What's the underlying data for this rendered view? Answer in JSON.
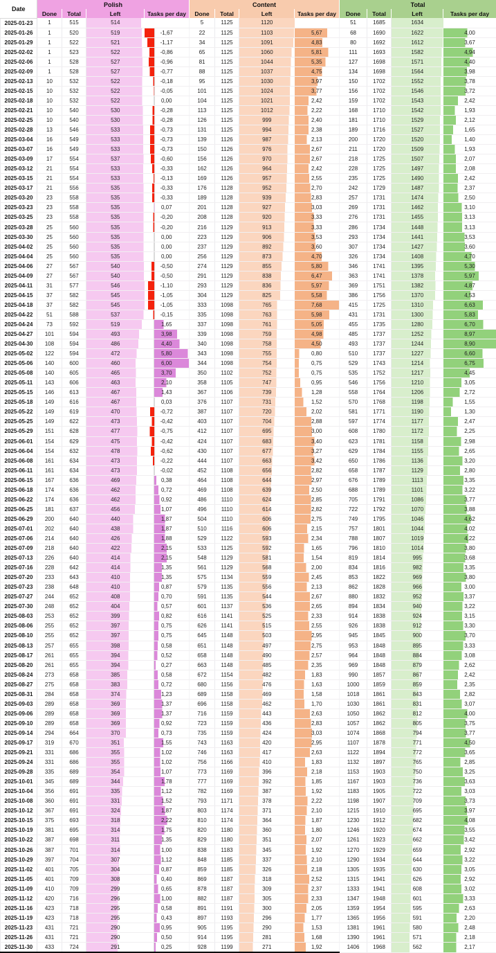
{
  "header": {
    "date": "Date",
    "sub": [
      "Done",
      "Total",
      "Left",
      "Tasks per day"
    ],
    "groups": [
      {
        "name": "Polish",
        "header_bg": "#EFA2E2",
        "left_bar": "#F6C9F0",
        "tpd_bar_pos": "#DB88DA",
        "tpd_bar_neg": "#F4220C"
      },
      {
        "name": "Content",
        "header_bg": "#F8CBAD",
        "left_bar": "#FBD6BF",
        "tpd_bar_pos": "#F5B387",
        "tpd_bar_neg": "#F4220C"
      },
      {
        "name": "Total",
        "header_bg": "#A9D08E",
        "left_bar": "#D8EECC",
        "tpd_bar_pos": "#92D17B",
        "tpd_bar_neg": "#F4220C"
      }
    ]
  },
  "scales": {
    "polish_left_max": 546,
    "content_left_max": 1120,
    "total_left_max": 1634,
    "polish_tpd_min": -1.67,
    "polish_tpd_max": 6.0,
    "content_tpd_max": 7.68,
    "total_tpd_max": 8.97
  },
  "columns": [
    "date",
    "polish-done",
    "polish-total",
    "polish-left",
    "polish-tasks-per-day",
    "content-done",
    "content-total",
    "content-left",
    "content-tasks-per-day",
    "total-done",
    "total-total",
    "total-left",
    "total-tasks-per-day"
  ],
  "rows": [
    [
      "2025-01-23",
      "1",
      "515",
      "514",
      "",
      "5",
      "1125",
      "1120",
      "",
      "51",
      "1685",
      "1634",
      ""
    ],
    [
      "2025-01-26",
      "1",
      "520",
      "519",
      "-1,67",
      "22",
      "1125",
      "1103",
      "5,67",
      "68",
      "1690",
      "1622",
      "4,00"
    ],
    [
      "2025-01-29",
      "1",
      "522",
      "521",
      "-1,17",
      "34",
      "1125",
      "1091",
      "4,83",
      "80",
      "1692",
      "1612",
      "3,67"
    ],
    [
      "2025-02-02",
      "1",
      "523",
      "522",
      "-0,86",
      "65",
      "1125",
      "1060",
      "5,81",
      "111",
      "1693",
      "1582",
      "4,94"
    ],
    [
      "2025-02-06",
      "1",
      "528",
      "527",
      "-0,96",
      "81",
      "1125",
      "1044",
      "5,35",
      "127",
      "1698",
      "1571",
      "4,40"
    ],
    [
      "2025-02-09",
      "1",
      "528",
      "527",
      "-0,77",
      "88",
      "1125",
      "1037",
      "4,75",
      "134",
      "1698",
      "1564",
      "3,98"
    ],
    [
      "2025-02-13",
      "10",
      "532",
      "522",
      "-0,18",
      "95",
      "1125",
      "1030",
      "3,97",
      "150",
      "1702",
      "1552",
      "3,78"
    ],
    [
      "2025-02-15",
      "10",
      "532",
      "522",
      "-0,05",
      "101",
      "1125",
      "1024",
      "3,77",
      "156",
      "1702",
      "1546",
      "3,72"
    ],
    [
      "2025-02-18",
      "10",
      "532",
      "522",
      "0,00",
      "104",
      "1125",
      "1021",
      "2,42",
      "159",
      "1702",
      "1543",
      "2,42"
    ],
    [
      "2025-02-21",
      "10",
      "540",
      "530",
      "-0,28",
      "113",
      "1125",
      "1012",
      "2,22",
      "168",
      "1710",
      "1542",
      "1,93"
    ],
    [
      "2025-02-25",
      "10",
      "540",
      "530",
      "-0,28",
      "126",
      "1125",
      "999",
      "2,40",
      "181",
      "1710",
      "1529",
      "2,12"
    ],
    [
      "2025-02-28",
      "13",
      "546",
      "533",
      "-0,73",
      "131",
      "1125",
      "994",
      "2,38",
      "189",
      "1716",
      "1527",
      "1,65"
    ],
    [
      "2025-03-04",
      "16",
      "549",
      "533",
      "-0,73",
      "139",
      "1126",
      "987",
      "2,13",
      "200",
      "1720",
      "1520",
      "1,40"
    ],
    [
      "2025-03-07",
      "16",
      "549",
      "533",
      "-0,73",
      "150",
      "1126",
      "976",
      "2,67",
      "211",
      "1720",
      "1509",
      "1,93"
    ],
    [
      "2025-03-09",
      "17",
      "554",
      "537",
      "-0,60",
      "156",
      "1126",
      "970",
      "2,67",
      "218",
      "1725",
      "1507",
      "2,07"
    ],
    [
      "2025-03-12",
      "21",
      "554",
      "533",
      "-0,33",
      "162",
      "1126",
      "964",
      "2,42",
      "228",
      "1725",
      "1497",
      "2,08"
    ],
    [
      "2025-03-15",
      "21",
      "554",
      "533",
      "-0,13",
      "169",
      "1126",
      "957",
      "2,55",
      "235",
      "1725",
      "1490",
      "2,42"
    ],
    [
      "2025-03-17",
      "21",
      "556",
      "535",
      "-0,33",
      "176",
      "1128",
      "952",
      "2,70",
      "242",
      "1729",
      "1487",
      "2,37"
    ],
    [
      "2025-03-20",
      "23",
      "558",
      "535",
      "-0,33",
      "189",
      "1128",
      "939",
      "2,83",
      "257",
      "1731",
      "1474",
      "2,50"
    ],
    [
      "2025-03-23",
      "23",
      "558",
      "535",
      "0,07",
      "201",
      "1128",
      "927",
      "3,03",
      "269",
      "1731",
      "1462",
      "3,10"
    ],
    [
      "2025-03-25",
      "23",
      "558",
      "535",
      "-0,20",
      "208",
      "1128",
      "920",
      "3,33",
      "276",
      "1731",
      "1455",
      "3,13"
    ],
    [
      "2025-03-28",
      "25",
      "560",
      "535",
      "-0,20",
      "216",
      "1129",
      "913",
      "3,33",
      "286",
      "1734",
      "1448",
      "3,13"
    ],
    [
      "2025-03-30",
      "25",
      "560",
      "535",
      "0,00",
      "223",
      "1129",
      "906",
      "3,53",
      "293",
      "1734",
      "1441",
      "3,53"
    ],
    [
      "2025-04-02",
      "25",
      "560",
      "535",
      "0,00",
      "237",
      "1129",
      "892",
      "3,60",
      "307",
      "1734",
      "1427",
      "3,60"
    ],
    [
      "2025-04-04",
      "25",
      "560",
      "535",
      "0,00",
      "256",
      "1129",
      "873",
      "4,70",
      "326",
      "1734",
      "1408",
      "4,70"
    ],
    [
      "2025-04-06",
      "27",
      "567",
      "540",
      "-0,50",
      "274",
      "1129",
      "855",
      "5,80",
      "346",
      "1741",
      "1395",
      "5,30"
    ],
    [
      "2025-04-09",
      "27",
      "567",
      "540",
      "-0,50",
      "291",
      "1129",
      "838",
      "6,47",
      "363",
      "1741",
      "1378",
      "5,97"
    ],
    [
      "2025-04-11",
      "31",
      "577",
      "546",
      "-1,10",
      "293",
      "1129",
      "836",
      "5,97",
      "369",
      "1751",
      "1382",
      "4,87"
    ],
    [
      "2025-04-15",
      "37",
      "582",
      "545",
      "-1,05",
      "304",
      "1129",
      "825",
      "5,58",
      "386",
      "1756",
      "1370",
      "4,53"
    ],
    [
      "2025-04-18",
      "37",
      "582",
      "545",
      "-1,05",
      "333",
      "1098",
      "765",
      "7,68",
      "415",
      "1725",
      "1310",
      "6,63"
    ],
    [
      "2025-04-22",
      "51",
      "588",
      "537",
      "-0,15",
      "335",
      "1098",
      "763",
      "5,98",
      "431",
      "1731",
      "1300",
      "5,83"
    ],
    [
      "2025-04-24",
      "73",
      "592",
      "519",
      "1,65",
      "337",
      "1098",
      "761",
      "5,05",
      "455",
      "1735",
      "1280",
      "6,70"
    ],
    [
      "2025-04-27",
      "101",
      "594",
      "493",
      "3,98",
      "339",
      "1098",
      "759",
      "4,98",
      "485",
      "1737",
      "1252",
      "8,97"
    ],
    [
      "2025-04-30",
      "108",
      "594",
      "486",
      "4,40",
      "340",
      "1098",
      "758",
      "4,50",
      "493",
      "1737",
      "1244",
      "8,90"
    ],
    [
      "2025-05-02",
      "122",
      "594",
      "472",
      "5,80",
      "343",
      "1098",
      "755",
      "0,80",
      "510",
      "1737",
      "1227",
      "6,60"
    ],
    [
      "2025-05-06",
      "140",
      "600",
      "460",
      "6,00",
      "344",
      "1098",
      "754",
      "0,75",
      "529",
      "1743",
      "1214",
      "6,75"
    ],
    [
      "2025-05-08",
      "140",
      "605",
      "465",
      "3,70",
      "350",
      "1102",
      "752",
      "0,75",
      "535",
      "1752",
      "1217",
      "4,45"
    ],
    [
      "2025-05-11",
      "143",
      "606",
      "463",
      "2,10",
      "358",
      "1105",
      "747",
      "0,95",
      "546",
      "1756",
      "1210",
      "3,05"
    ],
    [
      "2025-05-15",
      "146",
      "613",
      "467",
      "1,43",
      "367",
      "1106",
      "739",
      "1,28",
      "558",
      "1764",
      "1206",
      "2,72"
    ],
    [
      "2025-05-18",
      "149",
      "616",
      "467",
      "0,03",
      "376",
      "1107",
      "731",
      "1,52",
      "570",
      "1768",
      "1198",
      "1,55"
    ],
    [
      "2025-05-22",
      "149",
      "619",
      "470",
      "-0,72",
      "387",
      "1107",
      "720",
      "2,02",
      "581",
      "1771",
      "1190",
      "1,30"
    ],
    [
      "2025-05-25",
      "149",
      "622",
      "473",
      "-0,42",
      "403",
      "1107",
      "704",
      "2,88",
      "597",
      "1774",
      "1177",
      "2,47"
    ],
    [
      "2025-05-29",
      "151",
      "628",
      "477",
      "-0,75",
      "412",
      "1107",
      "695",
      "3,00",
      "608",
      "1780",
      "1172",
      "2,25"
    ],
    [
      "2025-06-01",
      "154",
      "629",
      "475",
      "-0,42",
      "424",
      "1107",
      "683",
      "3,40",
      "623",
      "1781",
      "1158",
      "2,98"
    ],
    [
      "2025-06-04",
      "154",
      "632",
      "478",
      "-0,62",
      "430",
      "1107",
      "677",
      "3,27",
      "629",
      "1784",
      "1155",
      "2,65"
    ],
    [
      "2025-06-08",
      "161",
      "634",
      "473",
      "-0,22",
      "444",
      "1107",
      "663",
      "3,42",
      "650",
      "1786",
      "1136",
      "3,20"
    ],
    [
      "2025-06-11",
      "161",
      "634",
      "473",
      "-0,02",
      "452",
      "1108",
      "656",
      "2,82",
      "658",
      "1787",
      "1129",
      "2,80"
    ],
    [
      "2025-06-15",
      "167",
      "636",
      "469",
      "0,38",
      "464",
      "1108",
      "644",
      "2,97",
      "676",
      "1789",
      "1113",
      "3,35"
    ],
    [
      "2025-06-18",
      "174",
      "636",
      "462",
      "0,72",
      "469",
      "1108",
      "639",
      "2,50",
      "688",
      "1789",
      "1101",
      "3,22"
    ],
    [
      "2025-06-22",
      "174",
      "636",
      "462",
      "0,92",
      "486",
      "1110",
      "624",
      "2,85",
      "705",
      "1791",
      "1086",
      "3,77"
    ],
    [
      "2025-06-25",
      "181",
      "637",
      "456",
      "1,07",
      "496",
      "1110",
      "614",
      "2,82",
      "722",
      "1792",
      "1070",
      "3,88"
    ],
    [
      "2025-06-29",
      "200",
      "640",
      "440",
      "1,87",
      "504",
      "1110",
      "606",
      "2,75",
      "749",
      "1795",
      "1046",
      "4,62"
    ],
    [
      "2025-07-01",
      "202",
      "640",
      "438",
      "1,87",
      "510",
      "1116",
      "606",
      "2,15",
      "757",
      "1801",
      "1044",
      "4,02"
    ],
    [
      "2025-07-06",
      "214",
      "640",
      "426",
      "1,88",
      "529",
      "1122",
      "593",
      "2,34",
      "788",
      "1807",
      "1019",
      "4,22"
    ],
    [
      "2025-07-09",
      "218",
      "640",
      "422",
      "2,15",
      "533",
      "1125",
      "592",
      "1,65",
      "796",
      "1810",
      "1014",
      "3,80"
    ],
    [
      "2025-07-13",
      "226",
      "640",
      "414",
      "2,15",
      "548",
      "1129",
      "581",
      "1,54",
      "819",
      "1814",
      "995",
      "3,68"
    ],
    [
      "2025-07-16",
      "228",
      "642",
      "414",
      "1,35",
      "561",
      "1129",
      "568",
      "2,00",
      "834",
      "1816",
      "982",
      "3,35"
    ],
    [
      "2025-07-20",
      "233",
      "643",
      "410",
      "1,35",
      "575",
      "1134",
      "559",
      "2,45",
      "853",
      "1822",
      "969",
      "3,80"
    ],
    [
      "2025-07-23",
      "238",
      "648",
      "410",
      "0,87",
      "579",
      "1135",
      "556",
      "2,13",
      "862",
      "1828",
      "966",
      "3,00"
    ],
    [
      "2025-07-27",
      "244",
      "652",
      "408",
      "0,70",
      "591",
      "1135",
      "544",
      "2,67",
      "880",
      "1832",
      "952",
      "3,37"
    ],
    [
      "2025-07-30",
      "248",
      "652",
      "404",
      "0,57",
      "601",
      "1137",
      "536",
      "2,65",
      "894",
      "1834",
      "940",
      "3,22"
    ],
    [
      "2025-08-03",
      "253",
      "652",
      "399",
      "0,82",
      "616",
      "1141",
      "525",
      "2,33",
      "914",
      "1838",
      "924",
      "3,15"
    ],
    [
      "2025-08-06",
      "255",
      "652",
      "397",
      "0,75",
      "626",
      "1141",
      "515",
      "2,55",
      "926",
      "1838",
      "912",
      "3,30"
    ],
    [
      "2025-08-10",
      "255",
      "652",
      "397",
      "0,75",
      "645",
      "1148",
      "503",
      "2,95",
      "945",
      "1845",
      "900",
      "3,70"
    ],
    [
      "2025-08-13",
      "257",
      "655",
      "398",
      "0,58",
      "651",
      "1148",
      "497",
      "2,75",
      "953",
      "1848",
      "895",
      "3,33"
    ],
    [
      "2025-08-17",
      "261",
      "655",
      "394",
      "0,52",
      "658",
      "1148",
      "490",
      "2,57",
      "964",
      "1848",
      "884",
      "3,08"
    ],
    [
      "2025-08-20",
      "261",
      "655",
      "394",
      "0,27",
      "663",
      "1148",
      "485",
      "2,35",
      "969",
      "1848",
      "879",
      "2,62"
    ],
    [
      "2025-08-24",
      "273",
      "658",
      "385",
      "0,58",
      "672",
      "1154",
      "482",
      "1,83",
      "990",
      "1857",
      "867",
      "2,42"
    ],
    [
      "2025-08-27",
      "275",
      "658",
      "383",
      "0,72",
      "680",
      "1156",
      "476",
      "1,63",
      "1000",
      "1859",
      "859",
      "2,35"
    ],
    [
      "2025-08-31",
      "284",
      "658",
      "374",
      "1,23",
      "689",
      "1158",
      "469",
      "1,58",
      "1018",
      "1861",
      "843",
      "2,82"
    ],
    [
      "2025-09-03",
      "289",
      "658",
      "369",
      "1,37",
      "696",
      "1158",
      "462",
      "1,70",
      "1030",
      "1861",
      "831",
      "3,07"
    ],
    [
      "2025-09-06",
      "289",
      "658",
      "369",
      "1,37",
      "716",
      "1159",
      "443",
      "2,63",
      "1050",
      "1862",
      "812",
      "4,00"
    ],
    [
      "2025-09-10",
      "289",
      "658",
      "369",
      "0,92",
      "723",
      "1159",
      "436",
      "2,83",
      "1057",
      "1862",
      "805",
      "3,75"
    ],
    [
      "2025-09-14",
      "294",
      "664",
      "370",
      "0,73",
      "735",
      "1159",
      "424",
      "3,03",
      "1074",
      "1868",
      "794",
      "3,77"
    ],
    [
      "2025-09-17",
      "319",
      "670",
      "351",
      "1,55",
      "743",
      "1163",
      "420",
      "2,95",
      "1107",
      "1878",
      "771",
      "4,50"
    ],
    [
      "2025-09-21",
      "331",
      "686",
      "355",
      "1,02",
      "746",
      "1163",
      "417",
      "2,63",
      "1122",
      "1894",
      "772",
      "3,65"
    ],
    [
      "2025-09-24",
      "331",
      "686",
      "355",
      "1,02",
      "756",
      "1166",
      "410",
      "1,83",
      "1132",
      "1897",
      "765",
      "2,85"
    ],
    [
      "2025-09-28",
      "335",
      "689",
      "354",
      "1,07",
      "773",
      "1169",
      "396",
      "2,18",
      "1153",
      "1903",
      "750",
      "3,25"
    ],
    [
      "2025-10-01",
      "345",
      "689",
      "344",
      "1,78",
      "777",
      "1169",
      "392",
      "1,85",
      "1167",
      "1903",
      "736",
      "3,63"
    ],
    [
      "2025-10-04",
      "356",
      "691",
      "335",
      "1,12",
      "782",
      "1169",
      "387",
      "1,92",
      "1183",
      "1905",
      "722",
      "3,03"
    ],
    [
      "2025-10-08",
      "360",
      "691",
      "331",
      "1,52",
      "793",
      "1171",
      "378",
      "2,22",
      "1198",
      "1907",
      "709",
      "3,73"
    ],
    [
      "2025-10-12",
      "367",
      "691",
      "324",
      "1,87",
      "803",
      "1174",
      "371",
      "2,10",
      "1215",
      "1910",
      "695",
      "3,97"
    ],
    [
      "2025-10-15",
      "375",
      "693",
      "318",
      "2,22",
      "810",
      "1174",
      "364",
      "1,87",
      "1230",
      "1912",
      "682",
      "4,08"
    ],
    [
      "2025-10-19",
      "381",
      "695",
      "314",
      "1,75",
      "820",
      "1180",
      "360",
      "1,80",
      "1246",
      "1920",
      "674",
      "3,55"
    ],
    [
      "2025-10-22",
      "387",
      "698",
      "311",
      "1,35",
      "829",
      "1180",
      "351",
      "2,07",
      "1261",
      "1923",
      "662",
      "3,42"
    ],
    [
      "2025-10-26",
      "387",
      "701",
      "314",
      "1,00",
      "838",
      "1183",
      "345",
      "1,92",
      "1270",
      "1929",
      "659",
      "2,92"
    ],
    [
      "2025-10-29",
      "397",
      "704",
      "307",
      "1,12",
      "848",
      "1185",
      "337",
      "2,10",
      "1290",
      "1934",
      "644",
      "3,22"
    ],
    [
      "2025-11-02",
      "401",
      "705",
      "304",
      "0,87",
      "859",
      "1185",
      "326",
      "2,18",
      "1305",
      "1935",
      "630",
      "3,05"
    ],
    [
      "2025-11-05",
      "401",
      "709",
      "308",
      "0,40",
      "869",
      "1187",
      "318",
      "2,52",
      "1315",
      "1941",
      "626",
      "2,92"
    ],
    [
      "2025-11-09",
      "410",
      "709",
      "299",
      "0,65",
      "878",
      "1187",
      "309",
      "2,37",
      "1333",
      "1941",
      "608",
      "3,02"
    ],
    [
      "2025-11-12",
      "420",
      "716",
      "296",
      "1,00",
      "882",
      "1187",
      "305",
      "2,33",
      "1347",
      "1948",
      "601",
      "3,33"
    ],
    [
      "2025-11-16",
      "423",
      "718",
      "295",
      "0,58",
      "891",
      "1191",
      "300",
      "2,05",
      "1359",
      "1954",
      "595",
      "2,63"
    ],
    [
      "2025-11-19",
      "423",
      "718",
      "295",
      "0,43",
      "897",
      "1193",
      "296",
      "1,77",
      "1365",
      "1956",
      "591",
      "2,20"
    ],
    [
      "2025-11-23",
      "431",
      "721",
      "290",
      "0,95",
      "905",
      "1195",
      "290",
      "1,53",
      "1381",
      "1961",
      "580",
      "2,48"
    ],
    [
      "2025-11-26",
      "431",
      "721",
      "290",
      "0,50",
      "914",
      "1195",
      "281",
      "1,68",
      "1390",
      "1961",
      "571",
      "2,18"
    ],
    [
      "2025-11-30",
      "433",
      "724",
      "291",
      "0,25",
      "928",
      "1199",
      "271",
      "1,92",
      "1406",
      "1968",
      "562",
      "2,17"
    ]
  ]
}
